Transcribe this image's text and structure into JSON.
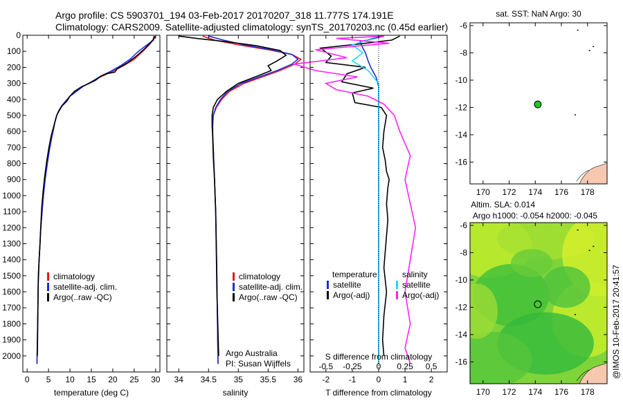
{
  "header": {
    "line1": "Argo profile: CS 5903701_194 03-Feb-2017 20170207_318 11.777S 174.191E",
    "line2": "Climatology: CARS2009. Satellite-adjusted climatology: synTS_20170203.nc (0.45d earlier)"
  },
  "watermark": "@IMOS 10-Feb-2017 20:41:57",
  "colors": {
    "climatology": "#e8141e",
    "satellite_clim": "#1a2ce0",
    "argo": "#000000",
    "salinity_sat": "#20d8f0",
    "salinity_argo": "#ff20ff",
    "land": "#f6c8b0"
  },
  "chart_data": [
    {
      "type": "line",
      "id": "temperature",
      "xlabel": "temperature (deg C)",
      "ylabel": "",
      "xlim": [
        -1,
        31
      ],
      "ylim": [
        2100,
        0
      ],
      "xticks": [
        0,
        5,
        10,
        15,
        20,
        25,
        30
      ],
      "yticks": [
        0,
        100,
        200,
        300,
        400,
        500,
        600,
        700,
        800,
        900,
        1000,
        1100,
        1200,
        1300,
        1400,
        1500,
        1600,
        1700,
        1800,
        1900,
        2000
      ],
      "legend": [
        "climatology",
        "satellite-adj. clim.",
        "Argo(..raw -QC)"
      ],
      "series": [
        {
          "name": "climatology",
          "color": "#e8141e",
          "x": [
            29.6,
            29.4,
            28.5,
            27,
            25,
            22.5,
            20,
            17.5,
            15,
            13,
            11.5,
            10,
            9,
            8.1,
            7.4,
            6.9,
            6.5,
            6.2,
            5.8,
            5.3,
            4.7,
            4.2,
            3.8,
            3.5,
            3.2,
            3.0,
            2.8,
            2.6,
            2.5,
            2.4,
            2.3
          ],
          "y": [
            5,
            30,
            60,
            100,
            150,
            190,
            225,
            255,
            290,
            320,
            350,
            380,
            410,
            440,
            470,
            500,
            540,
            580,
            630,
            700,
            800,
            900,
            1000,
            1100,
            1200,
            1300,
            1400,
            1500,
            1700,
            1900,
            2050
          ]
        },
        {
          "name": "satellite-adj. clim.",
          "color": "#1a2ce0",
          "x": [
            29.8,
            29.5,
            28,
            26,
            24,
            21.8,
            19.5,
            17.2,
            15,
            13,
            11.5,
            10,
            9,
            8.1,
            7.4,
            6.9,
            6.5,
            6.2,
            5.8,
            5.3,
            4.7,
            4.2,
            3.8,
            3.5,
            3.2,
            3.0,
            2.8,
            2.6,
            2.5,
            2.4,
            2.3
          ],
          "y": [
            5,
            30,
            60,
            100,
            150,
            190,
            225,
            255,
            290,
            320,
            350,
            380,
            410,
            440,
            470,
            500,
            540,
            580,
            630,
            700,
            800,
            900,
            1000,
            1100,
            1200,
            1300,
            1400,
            1500,
            1700,
            1900,
            2050
          ]
        },
        {
          "name": "Argo(..raw -QC)",
          "color": "#000000",
          "x": [
            29.9,
            29.5,
            28.5,
            27.2,
            25.5,
            23.5,
            21,
            20.5,
            18.5,
            17.2,
            16,
            14.5,
            12.8,
            11,
            10,
            9.3,
            8.2,
            7.5,
            6.9,
            6.5,
            6.1,
            5.6,
            5.1,
            4.6,
            4.1,
            3.7,
            3.4,
            3.2,
            3.0,
            2.8,
            2.6,
            2.5,
            2.4
          ],
          "y": [
            5,
            25,
            55,
            90,
            130,
            170,
            210,
            230,
            240,
            255,
            280,
            300,
            320,
            350,
            380,
            410,
            440,
            470,
            500,
            540,
            580,
            630,
            700,
            780,
            880,
            980,
            1080,
            1180,
            1300,
            1400,
            1550,
            1750,
            2000
          ]
        }
      ]
    },
    {
      "type": "line",
      "id": "salinity",
      "xlabel": "salinity",
      "ylabel": "",
      "xlim": [
        33.8,
        36.1
      ],
      "ylim": [
        2100,
        0
      ],
      "xticks": [
        34,
        34.5,
        35,
        35.5,
        36
      ],
      "legend": [
        "climatology",
        "satellite-adj. clim.",
        "Argo(..raw -QC)"
      ],
      "annotation": [
        "Argo Australia",
        "PI: Susan Wijffels"
      ],
      "series": [
        {
          "name": "climatology",
          "color": "#e8141e",
          "x": [
            34.4,
            34.6,
            35.0,
            35.5,
            35.9,
            36.05,
            35.95,
            35.7,
            35.4,
            35.1,
            34.85,
            34.72,
            34.63,
            34.58,
            34.57,
            34.57,
            34.58,
            34.6,
            34.62,
            34.63,
            34.64,
            34.65,
            34.66
          ],
          "y": [
            5,
            30,
            60,
            90,
            120,
            150,
            180,
            220,
            260,
            300,
            350,
            400,
            450,
            500,
            560,
            620,
            700,
            900,
            1100,
            1300,
            1500,
            1800,
            2050
          ]
        },
        {
          "name": "satellite-adj. clim.",
          "color": "#1a2ce0",
          "x": [
            34.5,
            34.75,
            35.1,
            35.55,
            35.9,
            36.0,
            35.9,
            35.65,
            35.35,
            35.05,
            34.82,
            34.7,
            34.62,
            34.58,
            34.57,
            34.57,
            34.58,
            34.6,
            34.62,
            34.63,
            34.64,
            34.65,
            34.66
          ],
          "y": [
            5,
            30,
            60,
            90,
            120,
            150,
            180,
            220,
            260,
            300,
            350,
            400,
            450,
            500,
            560,
            620,
            700,
            900,
            1100,
            1300,
            1500,
            1800,
            2050
          ]
        },
        {
          "name": "Argo(..raw -QC)",
          "color": "#000000",
          "x": [
            34.0,
            34.3,
            34.8,
            35.3,
            35.7,
            35.8,
            35.65,
            35.5,
            35.55,
            35.35,
            35.0,
            34.8,
            34.65,
            34.58,
            34.56,
            34.56,
            34.57,
            34.58,
            34.6,
            34.62,
            34.63,
            34.64,
            34.66,
            34.67
          ],
          "y": [
            5,
            20,
            40,
            65,
            95,
            125,
            160,
            190,
            220,
            250,
            300,
            350,
            400,
            450,
            500,
            560,
            640,
            760,
            900,
            1100,
            1350,
            1600,
            1850,
            2000
          ]
        }
      ]
    },
    {
      "type": "line",
      "id": "difference",
      "xlabel": "T difference from climatology",
      "xlabel2": "S difference from climatology",
      "xlim": [
        -2.6,
        2.6
      ],
      "ylim": [
        2100,
        0
      ],
      "xticks": [
        -2,
        -1,
        0,
        1,
        2
      ],
      "xticks_labels": [
        "-2",
        "-1",
        "0",
        "1",
        "2"
      ],
      "xticks_salinity": [
        -0.5,
        -0.25,
        0,
        0.25,
        0.5
      ],
      "xticks_salinity_labels": [
        "-0.5",
        "-0.25",
        "0",
        "0.25",
        "0.5"
      ],
      "legend_temperature": {
        "title": "temperature",
        "items": [
          "satellite",
          "Argo(-adj)"
        ]
      },
      "legend_salinity": {
        "title": "salinity",
        "items": [
          "satellite",
          "Argo(-adj)"
        ]
      },
      "series": [
        {
          "name": "T satellite",
          "color": "#1a2ce0",
          "x": [
            0.2,
            -0.7,
            -0.6,
            -0.5,
            -0.4,
            -0.3,
            -0.1,
            0,
            0,
            0,
            0,
            0,
            0,
            0
          ],
          "y": [
            5,
            40,
            80,
            110,
            160,
            200,
            260,
            320,
            400,
            600,
            900,
            1300,
            1700,
            2050
          ]
        },
        {
          "name": "T Argo(-adj)",
          "color": "#000000",
          "x": [
            0.8,
            0.5,
            -0.5,
            -2.2,
            -1.8,
            -2.0,
            -0.5,
            -1.2,
            -1.4,
            -0.2,
            -1.0,
            -0.9,
            0.1,
            0.3,
            0.2,
            0.15,
            0.25,
            0.3,
            0.4,
            0.35,
            0.3,
            0.35,
            0.3,
            0.25,
            0.2,
            0.3,
            0.2,
            0.15,
            0.2
          ],
          "y": [
            5,
            30,
            50,
            80,
            130,
            170,
            200,
            240,
            290,
            330,
            360,
            420,
            450,
            500,
            600,
            700,
            780,
            850,
            900,
            950,
            1050,
            1150,
            1250,
            1350,
            1450,
            1600,
            1750,
            1900,
            2000
          ]
        },
        {
          "name": "S satellite",
          "color": "#20d8f0",
          "x": [
            0,
            -0.25,
            -0.15,
            -0.25,
            -0.1,
            0,
            0,
            0,
            0,
            0,
            0,
            0
          ],
          "y": [
            5,
            60,
            110,
            160,
            220,
            300,
            400,
            600,
            900,
            1300,
            1700,
            2050
          ]
        },
        {
          "name": "S Argo(-adj)",
          "color": "#ff20ff",
          "x": [
            0.05,
            -0.4,
            0.1,
            -0.6,
            -0.3,
            -0.8,
            -0.6,
            -0.2,
            -0.5,
            -0.4,
            -0.1,
            0.05,
            0.15,
            0.2,
            0.3,
            0.25,
            0.3,
            0.35,
            0.3,
            0.25,
            0.3,
            0.25,
            0.3
          ],
          "y": [
            5,
            20,
            50,
            90,
            140,
            180,
            220,
            260,
            300,
            340,
            380,
            430,
            500,
            600,
            750,
            900,
            1050,
            1200,
            1400,
            1600,
            1800,
            1950,
            2050
          ]
        }
      ]
    },
    {
      "type": "scatter",
      "id": "sst-map",
      "title": "sat. SST: NaN Argo: 30",
      "xlim": [
        169,
        179.5
      ],
      "ylim": [
        -17.6,
        -5.8
      ],
      "xticks": [
        170,
        172,
        174,
        176,
        178
      ],
      "yticks": [
        -6,
        -8,
        -10,
        -12,
        -14,
        -16
      ],
      "yticks_labels": [
        "-6",
        "-8",
        "-10",
        "-12",
        "-14",
        "-16"
      ],
      "points": [
        {
          "lon": 174.191,
          "lat": -11.777,
          "color": "#22c322"
        }
      ]
    },
    {
      "type": "heatmap",
      "id": "sla-map",
      "title_line1": "Altim. SLA: 0.014",
      "title_line2": "Argo h1000: -0.054 h2000: -0.045",
      "xlim": [
        169,
        179.5
      ],
      "ylim": [
        -17.6,
        -5.8
      ],
      "xticks": [
        170,
        172,
        174,
        176,
        178
      ],
      "yticks": [
        -6,
        -8,
        -10,
        -12,
        -14,
        -16
      ],
      "yticks_labels": [
        "-6",
        "-8",
        "-10",
        "-12",
        "-14",
        "-16"
      ],
      "points": [
        {
          "lon": 174.191,
          "lat": -11.777
        }
      ]
    }
  ]
}
